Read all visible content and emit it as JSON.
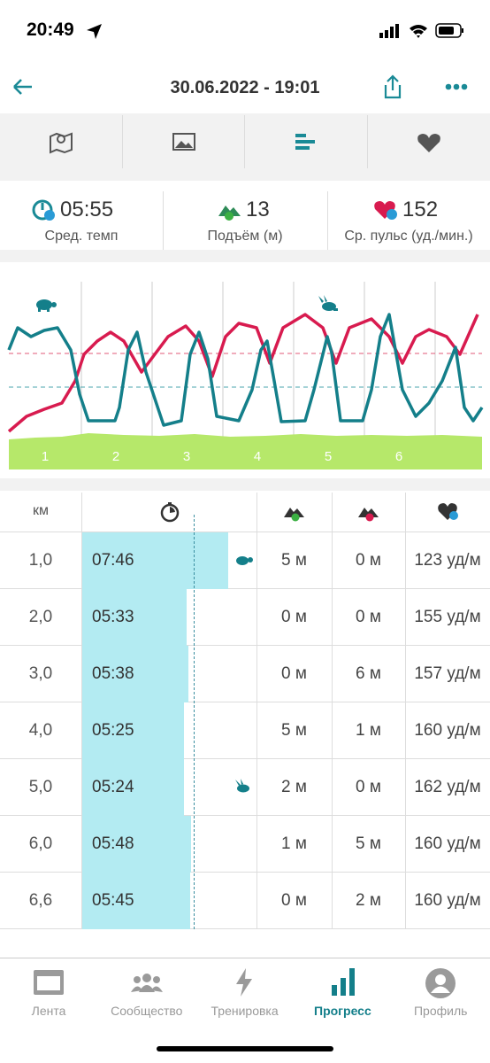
{
  "status_bar": {
    "time": "20:49"
  },
  "header": {
    "title": "30.06.2022 - 19:01"
  },
  "stats": [
    {
      "value": "05:55",
      "label": "Сред. темп"
    },
    {
      "value": "13",
      "label": "Подъём (м)"
    },
    {
      "value": "152",
      "label": "Ср. пульс (уд./мин.)"
    }
  ],
  "chart": {
    "segments": [
      "1",
      "2",
      "3",
      "4",
      "5",
      "6"
    ]
  },
  "table": {
    "header": {
      "km": "км"
    },
    "rows": [
      {
        "km": "1,0",
        "pace": "07:46",
        "up": "5 м",
        "down": "0 м",
        "hr": "123 уд/м"
      },
      {
        "km": "2,0",
        "pace": "05:33",
        "up": "0 м",
        "down": "0 м",
        "hr": "155 уд/м"
      },
      {
        "km": "3,0",
        "pace": "05:38",
        "up": "0 м",
        "down": "6 м",
        "hr": "157 уд/м"
      },
      {
        "km": "4,0",
        "pace": "05:25",
        "up": "5 м",
        "down": "1 м",
        "hr": "160 уд/м"
      },
      {
        "km": "5,0",
        "pace": "05:24",
        "up": "2 м",
        "down": "0 м",
        "hr": "162 уд/м"
      },
      {
        "km": "6,0",
        "pace": "05:48",
        "up": "1 м",
        "down": "5 м",
        "hr": "160 уд/м"
      },
      {
        "km": "6,6",
        "pace": "05:45",
        "up": "0 м",
        "down": "2 м",
        "hr": "160 уд/м"
      }
    ]
  },
  "nav": [
    "Лента",
    "Сообщество",
    "Тренировка",
    "Прогресс",
    "Профиль"
  ]
}
